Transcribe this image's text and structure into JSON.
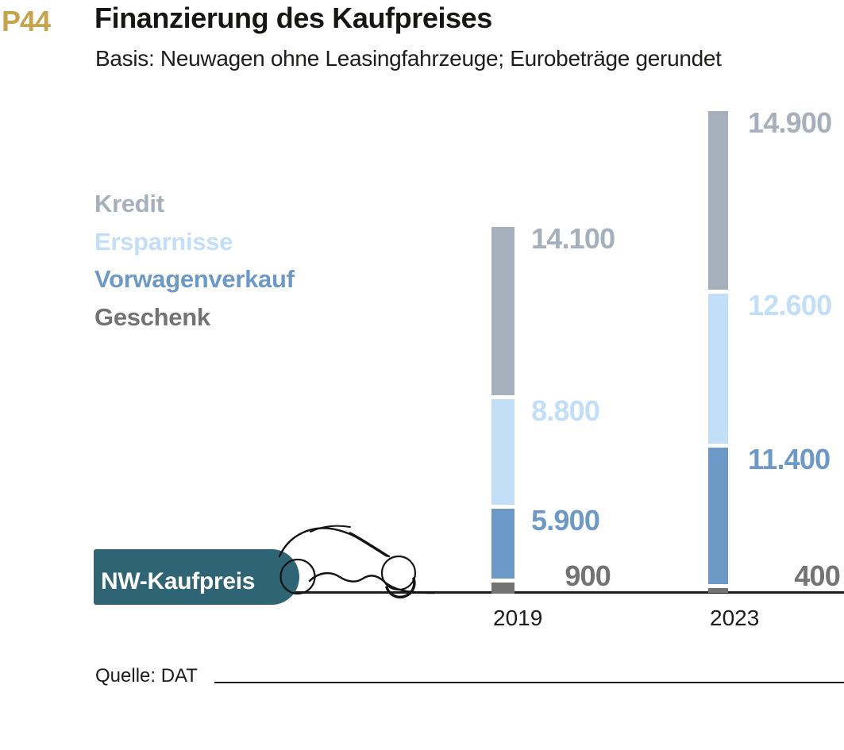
{
  "header": {
    "tag": "P44",
    "tag_color": "#c6a44e",
    "title": "Finanzierung des Kaufpreises",
    "subtitle": "Basis: Neuwagen ohne Leasingfahrzeuge; Eurobeträge gerundet"
  },
  "legend": {
    "items": [
      {
        "label": "Kredit",
        "color": "#a6b0bd"
      },
      {
        "label": "Ersparnisse",
        "color": "#c2dff7"
      },
      {
        "label": "Vorwagenverkauf",
        "color": "#6d99c6"
      },
      {
        "label": "Geschenk",
        "color": "#737373"
      }
    ]
  },
  "axis_label": {
    "text": "NW-Kaufpreis",
    "background": "#2f6475"
  },
  "source": {
    "label": "Quelle: DAT"
  },
  "chart_data": {
    "type": "bar",
    "stacked": true,
    "title": "Finanzierung des Kaufpreises",
    "subtitle": "Basis: Neuwagen ohne Leasingfahrzeuge; Eurobeträge gerundet",
    "unit": "EUR",
    "categories": [
      "2019",
      "2023"
    ],
    "series": [
      {
        "name": "Kredit",
        "color": "#a6b0bd",
        "values": [
          14100,
          14900
        ],
        "display": [
          "14.100",
          "14.900"
        ]
      },
      {
        "name": "Ersparnisse",
        "color": "#c2dff7",
        "values": [
          8800,
          12600
        ],
        "display": [
          "8.800",
          "12.600"
        ]
      },
      {
        "name": "Vorwagenverkauf",
        "color": "#6d99c6",
        "values": [
          5900,
          11400
        ],
        "display": [
          "5.900",
          "11.400"
        ]
      },
      {
        "name": "Geschenk",
        "color": "#737373",
        "values": [
          900,
          400
        ],
        "display": [
          "900",
          "400"
        ]
      }
    ],
    "legend_position": "left",
    "grid": false,
    "value_labels": "right-of-bar"
  }
}
